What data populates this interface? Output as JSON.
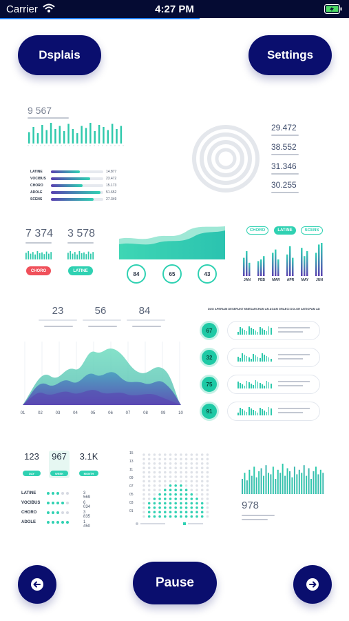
{
  "status_bar": {
    "carrier": "Carrier",
    "time": "4:27 PM"
  },
  "buttons": {
    "left_top": "Dsplais",
    "right_top": "Settings",
    "pause": "Pause"
  },
  "colors": {
    "navy": "#0a0e6e",
    "teal": "#2fd1b2",
    "purple": "#5a3fb0",
    "red": "#f0505a"
  },
  "widget_top_left": {
    "value": "9 567",
    "bars": [
      0.55,
      0.8,
      0.5,
      0.9,
      0.65,
      1.0,
      0.7,
      0.85,
      0.6,
      0.95,
      0.7,
      0.5,
      0.85,
      0.75,
      1.0,
      0.6,
      0.9,
      0.8,
      0.65,
      0.95,
      0.7,
      0.85
    ],
    "rows": [
      {
        "label": "LATINE",
        "value": "14.877",
        "fill": 0.55
      },
      {
        "label": "VOCIBUS",
        "value": "23.472",
        "fill": 0.75
      },
      {
        "label": "CHORO",
        "value": "15.173",
        "fill": 0.6
      },
      {
        "label": "ADOLE",
        "value": "51.652",
        "fill": 0.95
      },
      {
        "label": "SCENS",
        "value": "27.349",
        "fill": 0.82
      }
    ]
  },
  "widget_rings": {
    "values": [
      "29.472",
      "38.552",
      "31.346",
      "30.255"
    ]
  },
  "widget_small_stats": {
    "left": "7 374",
    "right": "3 578",
    "left_tag": "CHORO",
    "right_tag": "LATINE"
  },
  "widget_area_top": {
    "circles": [
      "84",
      "65",
      "43"
    ]
  },
  "widget_monthly": {
    "tags": [
      "CHORO",
      "LATINE",
      "SCENS"
    ],
    "months": [
      "JAN",
      "FEB",
      "MAR",
      "APR",
      "MAY",
      "JUN"
    ],
    "bars": [
      [
        0.55,
        0.75,
        0.4
      ],
      [
        0.45,
        0.5,
        0.6
      ],
      [
        0.7,
        0.8,
        0.5
      ],
      [
        0.65,
        0.9,
        0.55
      ],
      [
        0.85,
        0.6,
        0.75
      ],
      [
        0.7,
        0.95,
        1.0
      ]
    ]
  },
  "widget_big_area": {
    "stats": [
      "23",
      "56",
      "84"
    ],
    "axis": [
      "01",
      "02",
      "03",
      "04",
      "05",
      "06",
      "07",
      "08",
      "09",
      "10"
    ]
  },
  "widget_list": {
    "title": "DUO APERIAM DESERUNT MNESARCHUM AN AGAM GRAECI DOLOR ANTIOPAM AD",
    "items": [
      "67",
      "32",
      "75",
      "91"
    ]
  },
  "widget_bottom_left": {
    "stats": [
      {
        "value": "123",
        "tag": "DAY"
      },
      {
        "value": "967",
        "tag": "WEEK"
      },
      {
        "value": "3.1K",
        "tag": "MONTH"
      }
    ],
    "rows": [
      {
        "label": "LATINE",
        "value": "3 569",
        "dots": 3
      },
      {
        "label": "VOCIBUS",
        "value": "6 034",
        "dots": 4
      },
      {
        "label": "CHORO",
        "value": "3 835",
        "dots": 3
      },
      {
        "label": "ADOLE",
        "value": "1 450",
        "dots": 5
      }
    ]
  },
  "widget_dot_matrix": {
    "y_labels": [
      "15",
      "13",
      "11",
      "09",
      "07",
      "05",
      "03",
      "01"
    ]
  },
  "widget_bottom_right": {
    "value": "978",
    "bars": [
      0.5,
      0.7,
      0.45,
      0.8,
      0.6,
      0.9,
      0.55,
      0.75,
      0.85,
      0.6,
      0.95,
      0.7,
      0.65,
      0.9,
      0.5,
      0.8,
      0.7,
      1.0,
      0.6,
      0.85,
      0.75,
      0.55,
      0.9,
      0.65,
      0.8,
      0.7,
      0.95,
      0.6,
      0.85,
      0.5,
      0.75,
      0.9,
      0.65,
      0.8,
      0.7
    ]
  }
}
